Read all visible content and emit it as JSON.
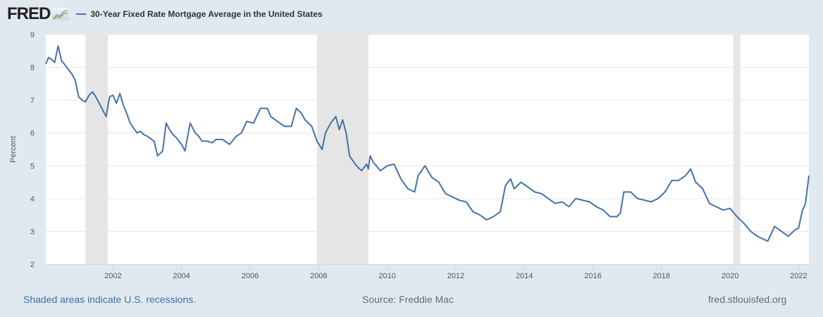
{
  "header": {
    "logo": "FRED",
    "logo_icon": "line-chart-icon",
    "legend_label": "30-Year Fixed Rate Mortgage Average in the United States",
    "legend_color": "#4572a7"
  },
  "footer": {
    "recession_note": "Shaded areas indicate U.S. recessions.",
    "source": "Source: Freddie Mac",
    "site": "fred.stlouisfed.org"
  },
  "chart_data": {
    "type": "line",
    "title": "30-Year Fixed Rate Mortgage Average in the United States",
    "xlabel": "",
    "ylabel": "Percent",
    "xlim": [
      2000.04,
      2022.3
    ],
    "ylim": [
      2,
      9
    ],
    "yticks": [
      2,
      3,
      4,
      5,
      6,
      7,
      8,
      9
    ],
    "xticks": [
      2002,
      2004,
      2006,
      2008,
      2010,
      2012,
      2014,
      2016,
      2018,
      2020,
      2022
    ],
    "grid": true,
    "legend": "top-left",
    "line_color": "#4572a7",
    "recessions": [
      [
        2001.2,
        2001.85
      ],
      [
        2007.95,
        2009.45
      ],
      [
        2020.1,
        2020.3
      ]
    ],
    "series": [
      {
        "name": "30-Year Fixed Rate Mortgage Average in the United States",
        "x": [
          2000.04,
          2000.12,
          2000.2,
          2000.3,
          2000.4,
          2000.5,
          2000.58,
          2000.65,
          2000.72,
          2000.8,
          2000.9,
          2001.0,
          2001.1,
          2001.2,
          2001.3,
          2001.4,
          2001.5,
          2001.6,
          2001.7,
          2001.8,
          2001.9,
          2002.0,
          2002.1,
          2002.2,
          2002.3,
          2002.4,
          2002.5,
          2002.6,
          2002.7,
          2002.8,
          2002.9,
          2003.0,
          2003.2,
          2003.3,
          2003.45,
          2003.55,
          2003.65,
          2003.75,
          2003.85,
          2004.0,
          2004.1,
          2004.25,
          2004.4,
          2004.5,
          2004.6,
          2004.75,
          2004.9,
          2005.0,
          2005.2,
          2005.4,
          2005.6,
          2005.75,
          2005.9,
          2006.1,
          2006.3,
          2006.5,
          2006.6,
          2006.8,
          2007.0,
          2007.2,
          2007.35,
          2007.5,
          2007.6,
          2007.8,
          2007.95,
          2008.1,
          2008.2,
          2008.35,
          2008.5,
          2008.6,
          2008.7,
          2008.8,
          2008.9,
          2009.0,
          2009.1,
          2009.25,
          2009.4,
          2009.45,
          2009.5,
          2009.6,
          2009.8,
          2010.0,
          2010.2,
          2010.4,
          2010.6,
          2010.8,
          2010.9,
          2011.1,
          2011.3,
          2011.5,
          2011.7,
          2011.9,
          2012.1,
          2012.3,
          2012.5,
          2012.7,
          2012.9,
          2013.1,
          2013.3,
          2013.45,
          2013.6,
          2013.7,
          2013.9,
          2014.1,
          2014.3,
          2014.5,
          2014.7,
          2014.9,
          2015.1,
          2015.3,
          2015.5,
          2015.7,
          2015.9,
          2016.1,
          2016.3,
          2016.5,
          2016.7,
          2016.8,
          2016.9,
          2017.1,
          2017.3,
          2017.5,
          2017.7,
          2017.9,
          2018.1,
          2018.3,
          2018.5,
          2018.7,
          2018.85,
          2019.0,
          2019.2,
          2019.4,
          2019.6,
          2019.8,
          2020.0,
          2020.2,
          2020.4,
          2020.6,
          2020.8,
          2021.0,
          2021.1,
          2021.3,
          2021.5,
          2021.7,
          2021.9,
          2022.0,
          2022.1,
          2022.2,
          2022.3
        ],
        "y": [
          8.1,
          8.3,
          8.25,
          8.15,
          8.65,
          8.2,
          8.1,
          8.0,
          7.9,
          7.8,
          7.6,
          7.1,
          7.0,
          6.95,
          7.15,
          7.25,
          7.1,
          6.9,
          6.7,
          6.5,
          7.1,
          7.15,
          6.9,
          7.2,
          6.85,
          6.6,
          6.3,
          6.15,
          6.0,
          6.05,
          5.95,
          5.9,
          5.75,
          5.3,
          5.45,
          6.3,
          6.1,
          5.95,
          5.85,
          5.65,
          5.45,
          6.3,
          6.0,
          5.9,
          5.75,
          5.75,
          5.7,
          5.8,
          5.8,
          5.65,
          5.9,
          6.0,
          6.35,
          6.3,
          6.75,
          6.75,
          6.5,
          6.35,
          6.2,
          6.2,
          6.75,
          6.6,
          6.4,
          6.2,
          5.75,
          5.5,
          6.0,
          6.3,
          6.5,
          6.1,
          6.4,
          6.0,
          5.3,
          5.15,
          5.0,
          4.85,
          5.05,
          4.9,
          5.3,
          5.1,
          4.85,
          5.0,
          5.05,
          4.6,
          4.3,
          4.2,
          4.7,
          5.0,
          4.65,
          4.5,
          4.15,
          4.05,
          3.95,
          3.9,
          3.6,
          3.5,
          3.35,
          3.45,
          3.6,
          4.4,
          4.6,
          4.3,
          4.5,
          4.35,
          4.2,
          4.15,
          4.0,
          3.85,
          3.9,
          3.75,
          4.0,
          3.95,
          3.9,
          3.75,
          3.65,
          3.45,
          3.45,
          3.55,
          4.2,
          4.2,
          4.0,
          3.95,
          3.9,
          4.0,
          4.2,
          4.55,
          4.55,
          4.7,
          4.9,
          4.5,
          4.3,
          3.85,
          3.75,
          3.65,
          3.7,
          3.45,
          3.25,
          3.0,
          2.85,
          2.75,
          2.7,
          3.15,
          3.0,
          2.85,
          3.05,
          3.1,
          3.6,
          3.85,
          4.7
        ]
      }
    ]
  }
}
